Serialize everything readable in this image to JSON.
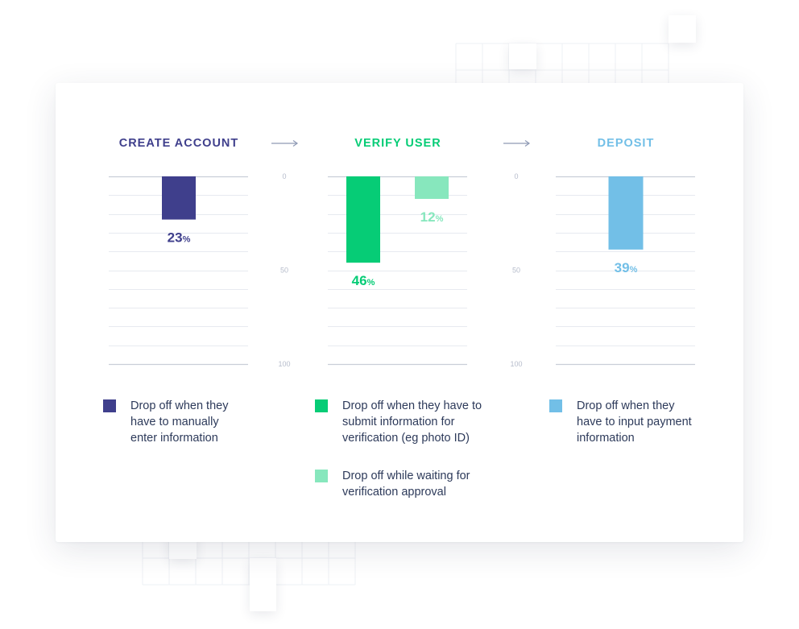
{
  "chart_data": [
    {
      "type": "bar",
      "title": "CREATE ACCOUNT",
      "title_color": "#3f3f8c",
      "ylim": [
        0,
        100
      ],
      "y_direction": "downward",
      "series": [
        {
          "values": [
            23
          ],
          "label": "23",
          "unit": "%",
          "color": "#3f3f8c",
          "legend": "Drop off when they have to manually enter information"
        }
      ]
    },
    {
      "type": "bar",
      "title": "VERIFY USER",
      "title_color": "#06cc76",
      "ylim": [
        0,
        100
      ],
      "y_direction": "downward",
      "yticks": [
        "0",
        "50",
        "100"
      ],
      "series": [
        {
          "values": [
            46
          ],
          "label": "46",
          "unit": "%",
          "color": "#06cc76",
          "legend": "Drop off when they have to submit information for verification (eg photo ID)"
        },
        {
          "values": [
            12
          ],
          "label": "12",
          "unit": "%",
          "color": "#87e7bd",
          "legend": "Drop off while waiting for verification approval"
        }
      ]
    },
    {
      "type": "bar",
      "title": "DEPOSIT",
      "title_color": "#72bfe7",
      "ylim": [
        0,
        100
      ],
      "y_direction": "downward",
      "yticks": [
        "0",
        "50",
        "100"
      ],
      "series": [
        {
          "values": [
            39
          ],
          "label": "39",
          "unit": "%",
          "color": "#72bfe7",
          "legend": "Drop off when they have to input payment information"
        }
      ]
    }
  ]
}
